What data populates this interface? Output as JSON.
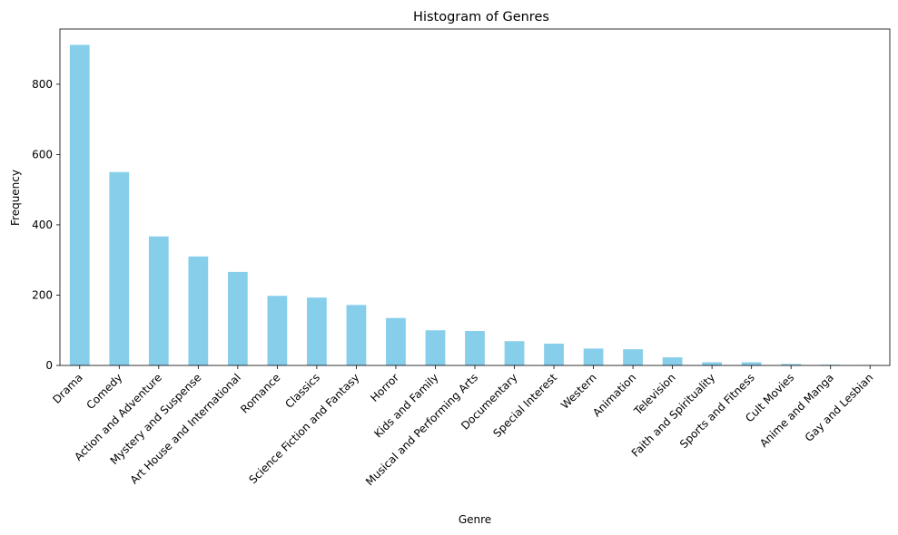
{
  "chart_data": {
    "type": "bar",
    "title": "Histogram of Genres",
    "xlabel": "Genre",
    "ylabel": "Frequency",
    "categories": [
      "Drama",
      "Comedy",
      "Action and Adventure",
      "Mystery and Suspense",
      "Art House and International",
      "Romance",
      "Classics",
      "Science Fiction and Fantasy",
      "Horror",
      "Kids and Family",
      "Musical and Performing Arts",
      "Documentary",
      "Special Interest",
      "Western",
      "Animation",
      "Television",
      "Faith and Spirituality",
      "Sports and Fitness",
      "Cult Movies",
      "Anime and Manga",
      "Gay and Lesbian"
    ],
    "values": [
      912,
      550,
      367,
      310,
      266,
      198,
      193,
      172,
      135,
      100,
      98,
      69,
      62,
      48,
      46,
      23,
      9,
      9,
      4,
      2,
      1
    ],
    "ylim": [
      0,
      957
    ],
    "yticks": [
      0,
      200,
      400,
      600,
      800
    ],
    "bar_color": "#87ceeb",
    "grid": false,
    "legend": "none"
  }
}
